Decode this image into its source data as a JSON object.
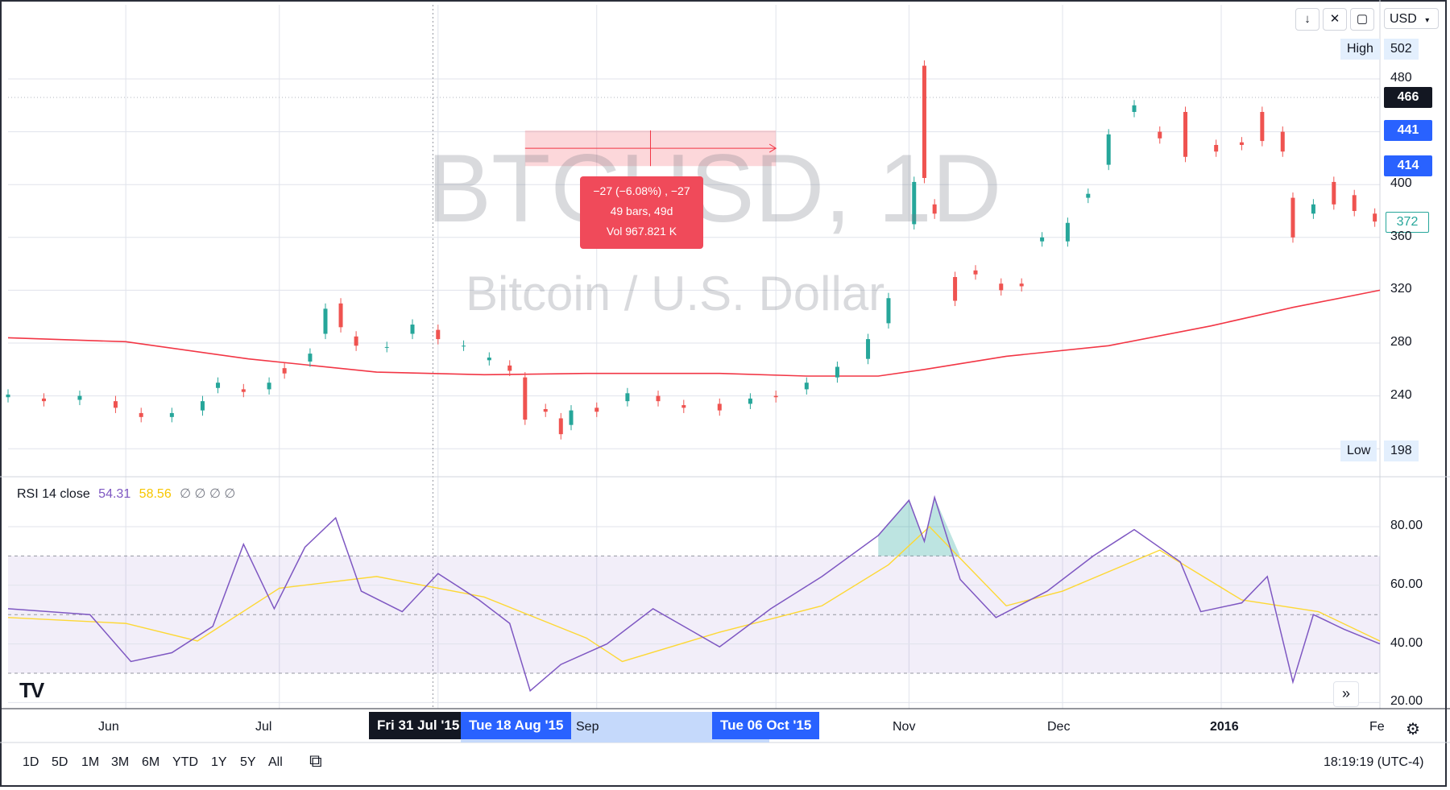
{
  "watermark": {
    "symbol": "BTCUSD, 1D",
    "name": "Bitcoin / U.S. Dollar"
  },
  "toolbar": {
    "currency": "USD",
    "down_icon": "arrow-down-icon",
    "collapse_icon": "collapse-icon",
    "fullscreen_icon": "fullscreen-icon"
  },
  "price_axis": {
    "ticks": [
      "480",
      "440",
      "400",
      "360",
      "320",
      "280",
      "240"
    ],
    "high_label": "High",
    "high_value": "502",
    "low_label": "Low",
    "low_value": "198",
    "current_tag": "466",
    "range_top_tag": "441",
    "range_bottom_tag": "414",
    "last_tag": "372"
  },
  "measure": {
    "line1": "−27 (−6.08%) , −27",
    "line2": "49 bars, 49d",
    "line3": "Vol 967.821 K"
  },
  "rsi": {
    "label": "RSI 14 close",
    "value1": "54.31",
    "value2": "58.56",
    "extras": "∅ ∅ ∅ ∅",
    "ticks": [
      "80.00",
      "60.00",
      "40.00",
      "20.00"
    ]
  },
  "time_axis": {
    "labels": [
      "Jun",
      "Jul",
      "Sep",
      "Nov",
      "Dec",
      "2016",
      "Fe"
    ],
    "crosshair": "Fri 31 Jul '15",
    "range_start": "Tue 18 Aug '15",
    "range_end": "Tue 06 Oct '15"
  },
  "range_buttons": [
    "1D",
    "5D",
    "1M",
    "3M",
    "6M",
    "YTD",
    "1Y",
    "5Y",
    "All"
  ],
  "clock": "18:19:19 (UTC-4)",
  "logo": "TV",
  "colors": {
    "up": "#26a69a",
    "down": "#ef5350",
    "ma": "#f23645",
    "rsi": "#7e57c2",
    "rsi_ma": "#fdd835",
    "accent": "#2962ff"
  },
  "chart_data": {
    "type": "candlestick",
    "title": "BTCUSD, 1D",
    "x_range": [
      "2015-05-09",
      "2016-02-01"
    ],
    "ylim": [
      190,
      510
    ],
    "grid": true,
    "candles": [
      {
        "d": "2015-05-09",
        "o": 239,
        "c": 241
      },
      {
        "d": "2015-05-16",
        "o": 238,
        "c": 236
      },
      {
        "d": "2015-05-23",
        "o": 237,
        "c": 240
      },
      {
        "d": "2015-05-30",
        "o": 236,
        "c": 231
      },
      {
        "d": "2015-06-04",
        "o": 227,
        "c": 224
      },
      {
        "d": "2015-06-10",
        "o": 224,
        "c": 227
      },
      {
        "d": "2015-06-16",
        "o": 229,
        "c": 236
      },
      {
        "d": "2015-06-19",
        "o": 246,
        "c": 250
      },
      {
        "d": "2015-06-24",
        "o": 245,
        "c": 243
      },
      {
        "d": "2015-06-29",
        "o": 245,
        "c": 250
      },
      {
        "d": "2015-07-02",
        "o": 261,
        "c": 257
      },
      {
        "d": "2015-07-07",
        "o": 266,
        "c": 272
      },
      {
        "d": "2015-07-10",
        "o": 287,
        "c": 306
      },
      {
        "d": "2015-07-13",
        "o": 310,
        "c": 292
      },
      {
        "d": "2015-07-16",
        "o": 285,
        "c": 278
      },
      {
        "d": "2015-07-22",
        "o": 277,
        "c": 277
      },
      {
        "d": "2015-07-27",
        "o": 287,
        "c": 294
      },
      {
        "d": "2015-08-01",
        "o": 290,
        "c": 283
      },
      {
        "d": "2015-08-06",
        "o": 278,
        "c": 278
      },
      {
        "d": "2015-08-11",
        "o": 267,
        "c": 269
      },
      {
        "d": "2015-08-15",
        "o": 263,
        "c": 259
      },
      {
        "d": "2015-08-18",
        "o": 254,
        "c": 222
      },
      {
        "d": "2015-08-22",
        "o": 230,
        "c": 228
      },
      {
        "d": "2015-08-25",
        "o": 223,
        "c": 211
      },
      {
        "d": "2015-08-27",
        "o": 218,
        "c": 229
      },
      {
        "d": "2015-09-01",
        "o": 231,
        "c": 228
      },
      {
        "d": "2015-09-07",
        "o": 236,
        "c": 242
      },
      {
        "d": "2015-09-13",
        "o": 240,
        "c": 236
      },
      {
        "d": "2015-09-18",
        "o": 233,
        "c": 231
      },
      {
        "d": "2015-09-25",
        "o": 234,
        "c": 229
      },
      {
        "d": "2015-10-01",
        "o": 234,
        "c": 238
      },
      {
        "d": "2015-10-06",
        "o": 240,
        "c": 239
      },
      {
        "d": "2015-10-12",
        "o": 245,
        "c": 250
      },
      {
        "d": "2015-10-18",
        "o": 254,
        "c": 262
      },
      {
        "d": "2015-10-24",
        "o": 268,
        "c": 283
      },
      {
        "d": "2015-10-28",
        "o": 295,
        "c": 314
      },
      {
        "d": "2015-11-02",
        "o": 370,
        "c": 402
      },
      {
        "d": "2015-11-04",
        "o": 490,
        "c": 405
      },
      {
        "d": "2015-11-06",
        "o": 385,
        "c": 378
      },
      {
        "d": "2015-11-10",
        "o": 330,
        "c": 312
      },
      {
        "d": "2015-11-14",
        "o": 335,
        "c": 332
      },
      {
        "d": "2015-11-19",
        "o": 325,
        "c": 320
      },
      {
        "d": "2015-11-23",
        "o": 325,
        "c": 323
      },
      {
        "d": "2015-11-27",
        "o": 357,
        "c": 360
      },
      {
        "d": "2015-12-02",
        "o": 357,
        "c": 371
      },
      {
        "d": "2015-12-06",
        "o": 390,
        "c": 393
      },
      {
        "d": "2015-12-10",
        "o": 415,
        "c": 438
      },
      {
        "d": "2015-12-15",
        "o": 455,
        "c": 460
      },
      {
        "d": "2015-12-20",
        "o": 440,
        "c": 435
      },
      {
        "d": "2015-12-25",
        "o": 455,
        "c": 421
      },
      {
        "d": "2015-12-31",
        "o": 430,
        "c": 425
      },
      {
        "d": "2016-01-05",
        "o": 432,
        "c": 430
      },
      {
        "d": "2016-01-09",
        "o": 455,
        "c": 433
      },
      {
        "d": "2016-01-13",
        "o": 440,
        "c": 425
      },
      {
        "d": "2016-01-15",
        "o": 390,
        "c": 360
      },
      {
        "d": "2016-01-19",
        "o": 378,
        "c": 385
      },
      {
        "d": "2016-01-23",
        "o": 402,
        "c": 385
      },
      {
        "d": "2016-01-27",
        "o": 392,
        "c": 380
      },
      {
        "d": "2016-01-31",
        "o": 378,
        "c": 372
      }
    ],
    "moving_average": [
      {
        "d": "2015-05-09",
        "v": 284
      },
      {
        "d": "2015-06-01",
        "v": 281
      },
      {
        "d": "2015-06-25",
        "v": 268
      },
      {
        "d": "2015-07-20",
        "v": 258
      },
      {
        "d": "2015-08-10",
        "v": 256
      },
      {
        "d": "2015-08-30",
        "v": 257
      },
      {
        "d": "2015-09-25",
        "v": 257
      },
      {
        "d": "2015-10-12",
        "v": 255
      },
      {
        "d": "2015-10-26",
        "v": 255
      },
      {
        "d": "2015-11-04",
        "v": 260
      },
      {
        "d": "2015-11-20",
        "v": 270
      },
      {
        "d": "2015-12-10",
        "v": 278
      },
      {
        "d": "2015-12-30",
        "v": 293
      },
      {
        "d": "2016-01-15",
        "v": 307
      },
      {
        "d": "2016-02-01",
        "v": 320
      }
    ],
    "rsi": [
      {
        "d": "2015-05-09",
        "v": 52
      },
      {
        "d": "2015-05-25",
        "v": 50
      },
      {
        "d": "2015-06-02",
        "v": 34
      },
      {
        "d": "2015-06-10",
        "v": 37
      },
      {
        "d": "2015-06-18",
        "v": 46
      },
      {
        "d": "2015-06-24",
        "v": 74
      },
      {
        "d": "2015-06-30",
        "v": 52
      },
      {
        "d": "2015-07-06",
        "v": 73
      },
      {
        "d": "2015-07-12",
        "v": 83
      },
      {
        "d": "2015-07-17",
        "v": 58
      },
      {
        "d": "2015-07-25",
        "v": 51
      },
      {
        "d": "2015-08-01",
        "v": 64
      },
      {
        "d": "2015-08-09",
        "v": 55
      },
      {
        "d": "2015-08-15",
        "v": 47
      },
      {
        "d": "2015-08-19",
        "v": 24
      },
      {
        "d": "2015-08-25",
        "v": 33
      },
      {
        "d": "2015-09-03",
        "v": 40
      },
      {
        "d": "2015-09-12",
        "v": 52
      },
      {
        "d": "2015-09-19",
        "v": 45
      },
      {
        "d": "2015-09-25",
        "v": 39
      },
      {
        "d": "2015-10-05",
        "v": 52
      },
      {
        "d": "2015-10-15",
        "v": 63
      },
      {
        "d": "2015-10-26",
        "v": 77
      },
      {
        "d": "2015-11-01",
        "v": 89
      },
      {
        "d": "2015-11-04",
        "v": 75
      },
      {
        "d": "2015-11-06",
        "v": 90
      },
      {
        "d": "2015-11-11",
        "v": 62
      },
      {
        "d": "2015-11-18",
        "v": 49
      },
      {
        "d": "2015-11-28",
        "v": 58
      },
      {
        "d": "2015-12-07",
        "v": 70
      },
      {
        "d": "2015-12-15",
        "v": 79
      },
      {
        "d": "2015-12-24",
        "v": 68
      },
      {
        "d": "2015-12-28",
        "v": 51
      },
      {
        "d": "2016-01-05",
        "v": 54
      },
      {
        "d": "2016-01-10",
        "v": 63
      },
      {
        "d": "2016-01-15",
        "v": 27
      },
      {
        "d": "2016-01-19",
        "v": 50
      },
      {
        "d": "2016-01-25",
        "v": 45
      },
      {
        "d": "2016-02-01",
        "v": 40
      }
    ],
    "rsi_ma": [
      {
        "d": "2015-05-09",
        "v": 49
      },
      {
        "d": "2015-06-01",
        "v": 47
      },
      {
        "d": "2015-06-15",
        "v": 41
      },
      {
        "d": "2015-07-01",
        "v": 59
      },
      {
        "d": "2015-07-20",
        "v": 63
      },
      {
        "d": "2015-08-10",
        "v": 56
      },
      {
        "d": "2015-08-30",
        "v": 42
      },
      {
        "d": "2015-09-06",
        "v": 34
      },
      {
        "d": "2015-09-25",
        "v": 44
      },
      {
        "d": "2015-10-15",
        "v": 53
      },
      {
        "d": "2015-10-28",
        "v": 67
      },
      {
        "d": "2015-11-05",
        "v": 80
      },
      {
        "d": "2015-11-20",
        "v": 53
      },
      {
        "d": "2015-12-01",
        "v": 58
      },
      {
        "d": "2015-12-20",
        "v": 72
      },
      {
        "d": "2016-01-05",
        "v": 55
      },
      {
        "d": "2016-01-20",
        "v": 51
      },
      {
        "d": "2016-02-01",
        "v": 41
      }
    ],
    "rsi_ylim": [
      18,
      93
    ],
    "rsi_bands": [
      30,
      50,
      70
    ],
    "measure_range": {
      "from": "2015-08-18",
      "to": "2015-10-06",
      "from_price": 441,
      "to_price": 414
    }
  }
}
